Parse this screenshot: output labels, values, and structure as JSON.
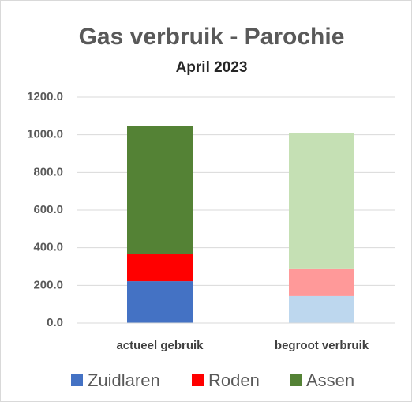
{
  "chart_data": {
    "type": "stacked_bar",
    "title": "Gas verbruik - Parochie",
    "subtitle": "April 2023",
    "categories": [
      "actueel gebruik",
      "begroot verbruik"
    ],
    "series": [
      {
        "name": "Zuidlaren",
        "color": "#4472c4",
        "colors": [
          "#4472c4",
          "#bdd7ee"
        ],
        "values": [
          222,
          143
        ]
      },
      {
        "name": "Roden",
        "color": "#ff0000",
        "colors": [
          "#ff0000",
          "#ff9999"
        ],
        "values": [
          143,
          147
        ]
      },
      {
        "name": "Assen",
        "color": "#548235",
        "colors": [
          "#548235",
          "#c5e0b4"
        ],
        "values": [
          680,
          721
        ]
      }
    ],
    "ylim": [
      0,
      1200
    ],
    "yticks": [
      {
        "value": 0,
        "label": "0.0"
      },
      {
        "value": 200,
        "label": "200.0"
      },
      {
        "value": 400,
        "label": "400.0"
      },
      {
        "value": 600,
        "label": "600.0"
      },
      {
        "value": 800,
        "label": "800.0"
      },
      {
        "value": 1000,
        "label": "1000.0"
      },
      {
        "value": 1200,
        "label": "1200.0"
      }
    ],
    "grid": true,
    "legend": "bottom"
  }
}
